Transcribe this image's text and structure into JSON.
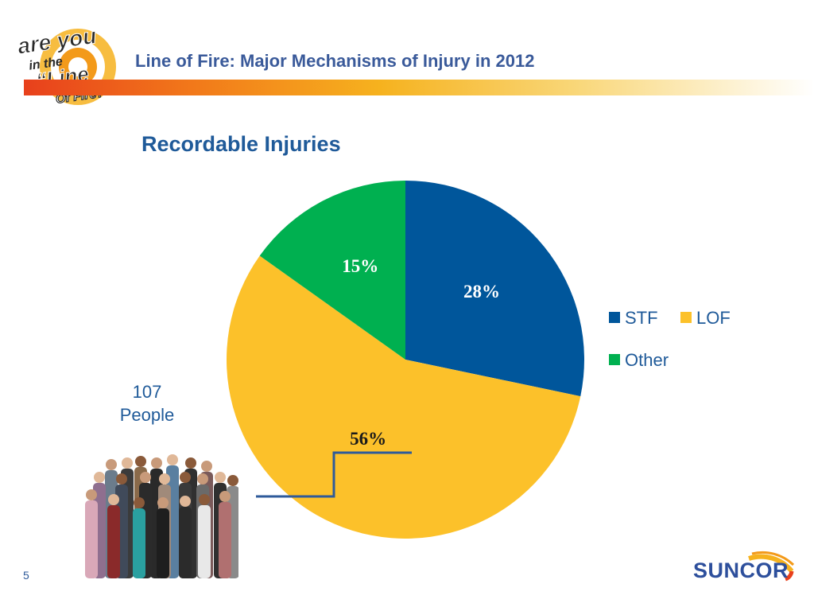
{
  "header": {
    "title": "Line of Fire: Major Mechanisms of Injury in 2012",
    "logo_text": [
      "are you",
      "in the",
      "“Line",
      "Of Fire?”"
    ]
  },
  "chart_data": {
    "type": "pie",
    "title": "Recordable Injuries",
    "slices": [
      {
        "name": "STF",
        "value": 28,
        "label": "28%",
        "color": "#00569b"
      },
      {
        "name": "LOF",
        "value": 56,
        "label": "56%",
        "color": "#fcc12a"
      },
      {
        "name": "Other",
        "value": 15,
        "label": "15%",
        "color": "#00b050"
      }
    ],
    "legend": {
      "placement": "right",
      "entries": [
        "STF",
        "LOF",
        "Other"
      ]
    }
  },
  "callout": {
    "line1": "107",
    "line2": "People"
  },
  "footer": {
    "page_number": "5",
    "brand": "SUNCOR"
  }
}
